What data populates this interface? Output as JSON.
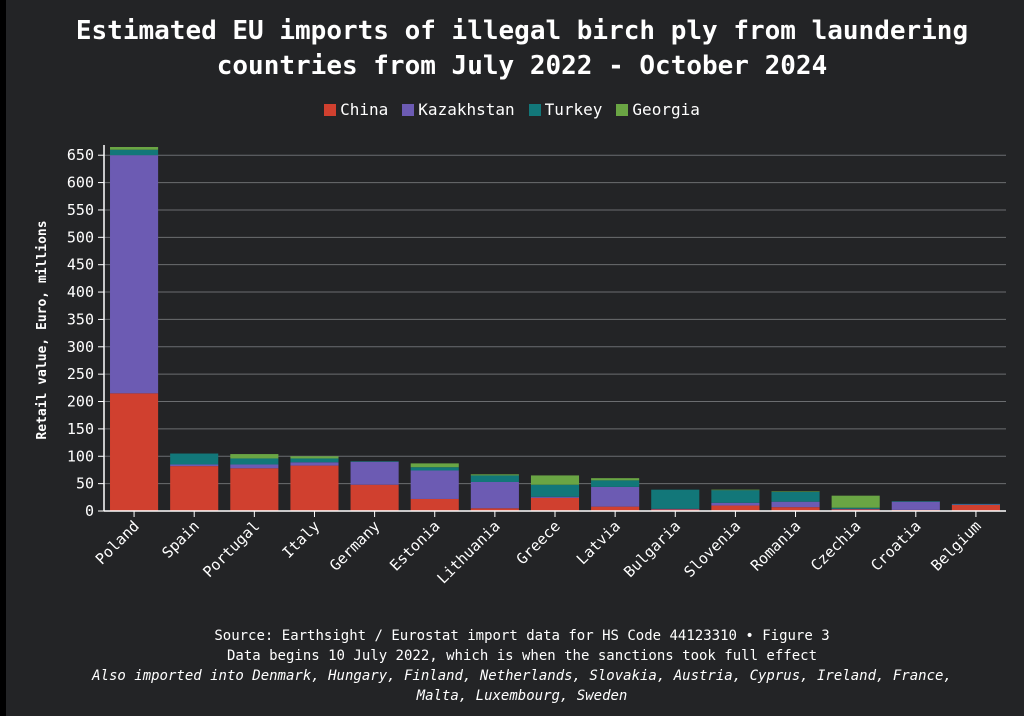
{
  "title_line1": "Estimated EU imports of illegal birch ply from laundering",
  "title_line2": "countries from July 2022 - October 2024",
  "footer": {
    "line1": "Source: Earthsight / Eurostat import data for HS Code 44123310 • Figure 3",
    "line2": "Data begins 10 July 2022, which is when the sanctions took full effect",
    "line3": "Also imported into Denmark, Hungary, Finland, Netherlands, Slovakia, Austria, Cyprus, Ireland, France,",
    "line4": "Malta, Luxembourg, Sweden"
  },
  "chart_data": {
    "type": "bar",
    "stacked": true,
    "title": "Estimated EU imports of illegal birch ply from laundering countries from July 2022 - October 2024",
    "xlabel": "",
    "ylabel": "Retail value, Euro, millions",
    "ylim": [
      0,
      665
    ],
    "yticks": [
      0,
      50,
      100,
      150,
      200,
      250,
      300,
      350,
      400,
      450,
      500,
      550,
      600,
      650
    ],
    "grid": true,
    "legend_position": "top-center",
    "categories": [
      "Poland",
      "Spain",
      "Portugal",
      "Italy",
      "Germany",
      "Estonia",
      "Lithuania",
      "Greece",
      "Latvia",
      "Bulgaria",
      "Slovenia",
      "Romania",
      "Czechia",
      "Croatia",
      "Belgium"
    ],
    "series": [
      {
        "name": "China",
        "color": "#d0402f",
        "values": [
          215,
          82,
          78,
          83,
          48,
          22,
          5,
          24,
          8,
          3,
          10,
          7,
          3,
          2,
          11
        ]
      },
      {
        "name": "Kazakhstan",
        "color": "#6c5bb3",
        "values": [
          435,
          3,
          7,
          6,
          42,
          52,
          48,
          2,
          36,
          1,
          5,
          10,
          1,
          15,
          1
        ]
      },
      {
        "name": "Turkey",
        "color": "#127779",
        "values": [
          10,
          20,
          11,
          7,
          1,
          6,
          12,
          22,
          12,
          35,
          23,
          18,
          2,
          1,
          1
        ]
      },
      {
        "name": "Georgia",
        "color": "#6aa544",
        "values": [
          5,
          0,
          8,
          4,
          0,
          7,
          2,
          17,
          4,
          0,
          1,
          1,
          22,
          0,
          0
        ]
      }
    ]
  }
}
